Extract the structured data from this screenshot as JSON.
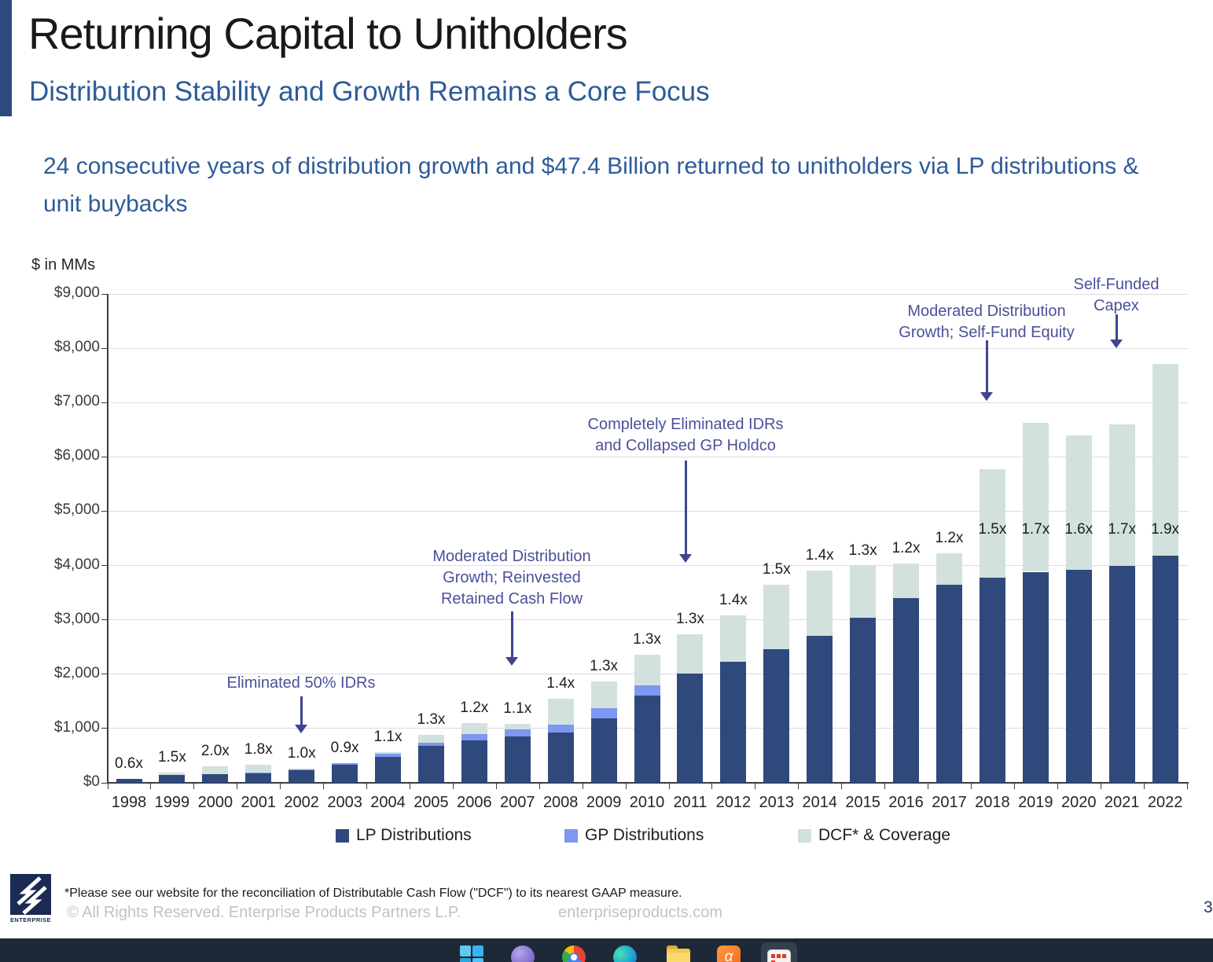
{
  "slide": {
    "title": "Returning Capital to Unitholders",
    "subtitle": "Distribution Stability and Growth Remains a Core Focus",
    "body": "24 consecutive years of distribution growth and $47.4 Billion returned to unitholders via LP distributions & unit buybacks",
    "page_number": "3"
  },
  "chart_data": {
    "type": "bar",
    "stacked": true,
    "title": "",
    "units_label": "$ in MMs",
    "xlabel": "",
    "ylabel": "$ in MMs",
    "ylim": [
      0,
      9000
    ],
    "ytick_interval": 1000,
    "ytick_labels": [
      "$0",
      "$1,000",
      "$2,000",
      "$3,000",
      "$4,000",
      "$5,000",
      "$6,000",
      "$7,000",
      "$8,000",
      "$9,000"
    ],
    "grid": true,
    "legend_position": "bottom",
    "categories": [
      "1998",
      "1999",
      "2000",
      "2001",
      "2002",
      "2003",
      "2004",
      "2005",
      "2006",
      "2007",
      "2008",
      "2009",
      "2010",
      "2011",
      "2012",
      "2013",
      "2014",
      "2015",
      "2016",
      "2017",
      "2018",
      "2019",
      "2020",
      "2021",
      "2022"
    ],
    "series": [
      {
        "name": "LP Distributions",
        "color": "#30497c",
        "values": [
          75,
          145,
          165,
          185,
          235,
          330,
          480,
          675,
          775,
          855,
          930,
          1190,
          1600,
          2010,
          2225,
          2455,
          2700,
          3035,
          3395,
          3640,
          3770,
          3885,
          3915,
          3990,
          4175
        ]
      },
      {
        "name": "GP Distributions",
        "color": "#7e97f2",
        "values": [
          0,
          0,
          0,
          10,
          15,
          30,
          50,
          70,
          115,
          130,
          145,
          185,
          190,
          0,
          0,
          0,
          0,
          0,
          0,
          0,
          0,
          0,
          0,
          0,
          0
        ]
      },
      {
        "name": "DCF* & Coverage",
        "color": "#d3e1de",
        "values": [
          0,
          50,
          145,
          140,
          15,
          0,
          40,
          135,
          210,
          100,
          470,
          490,
          565,
          720,
          855,
          1185,
          1200,
          965,
          635,
          580,
          2010,
          2745,
          2485,
          2615,
          3540
        ]
      }
    ],
    "coverage_ratio_labels": [
      "0.6x",
      "1.5x",
      "2.0x",
      "1.8x",
      "1.0x",
      "0.9x",
      "1.1x",
      "1.3x",
      "1.2x",
      "1.1x",
      "1.4x",
      "1.3x",
      "1.3x",
      "1.3x",
      "1.4x",
      "1.5x",
      "1.4x",
      "1.3x",
      "1.2x",
      "1.2x",
      "1.5x",
      "1.7x",
      "1.6x",
      "1.7x",
      "1.9x"
    ],
    "annotations": [
      {
        "id": "eliminated-idrs",
        "lines": [
          "Eliminated 50% IDRs"
        ],
        "target_year": "2002"
      },
      {
        "id": "moderated-reinvested",
        "lines": [
          "Moderated Distribution",
          "Growth; Reinvested",
          "Retained Cash Flow"
        ],
        "target_year": "2007"
      },
      {
        "id": "completely-eliminated",
        "lines": [
          "Completely Eliminated IDRs",
          "and Collapsed GP Holdco"
        ],
        "target_year": "2011"
      },
      {
        "id": "moderated-selffund",
        "lines": [
          "Moderated Distribution",
          "Growth; Self-Fund Equity"
        ],
        "target_year": "2018"
      },
      {
        "id": "self-funded-capex",
        "lines": [
          "Self-Funded",
          "Capex"
        ],
        "target_year": "2021"
      }
    ]
  },
  "footer": {
    "logo_text": "ENTERPRISE",
    "footnote": "*Please see our website for the reconciliation of Distributable Cash Flow (\"DCF\") to its nearest GAAP measure.",
    "copyright": "© All Rights Reserved. Enterprise Products Partners L.P.",
    "website": "enterpriseproducts.com"
  },
  "taskbar": {
    "icons": [
      "windows-start",
      "copilot",
      "chrome",
      "edge",
      "file-explorer",
      "office-app",
      "presentation-active"
    ]
  }
}
